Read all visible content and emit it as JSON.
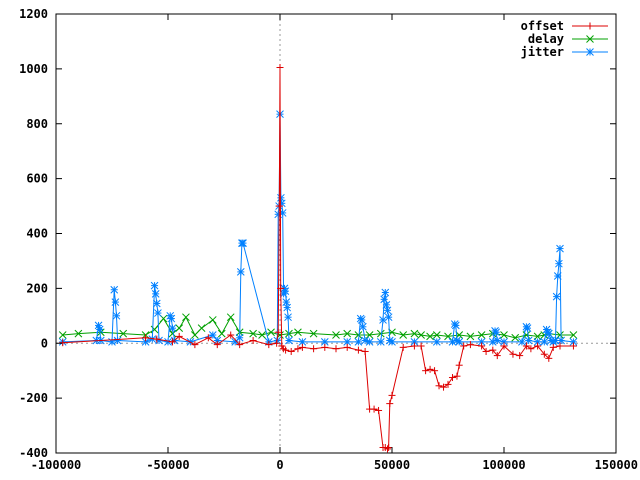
{
  "chart_data": {
    "type": "line",
    "title": "",
    "xlabel": "",
    "ylabel": "",
    "xlim": [
      -100000,
      150000
    ],
    "ylim": [
      -400,
      1200
    ],
    "x_ticks": [
      -100000,
      -50000,
      0,
      50000,
      100000,
      150000
    ],
    "y_ticks": [
      -400,
      -200,
      0,
      200,
      400,
      600,
      800,
      1000,
      1200
    ],
    "x_tick_labels": [
      "-100000",
      "-50000",
      "0",
      "50000",
      "100000",
      "150000"
    ],
    "y_tick_labels": [
      "-400",
      "-200",
      "0",
      "200",
      "400",
      "600",
      "800",
      "1000",
      "1200"
    ],
    "grid": false,
    "zero_axes": "dotted",
    "legend_position": "top-right",
    "series": [
      {
        "name": "offset",
        "color": "#dd0000",
        "marker": "plus",
        "x": [
          -97000,
          -60000,
          -55000,
          -48000,
          -45000,
          -38000,
          -32000,
          -28000,
          -22000,
          -18000,
          -12000,
          -5000,
          -1500,
          -800,
          -300,
          0,
          300,
          800,
          1500,
          2500,
          5000,
          8000,
          10000,
          15000,
          20000,
          25000,
          30000,
          35000,
          38000,
          40000,
          42000,
          44000,
          46000,
          47000,
          48000,
          48500,
          49000,
          50000,
          55000,
          60000,
          63000,
          65000,
          67000,
          69000,
          71000,
          73000,
          75000,
          77000,
          79000,
          80000,
          82000,
          85000,
          90000,
          92000,
          95000,
          97000,
          100000,
          104000,
          107000,
          110000,
          112000,
          115000,
          118000,
          120000,
          122000,
          125000,
          131000
        ],
        "y": [
          2,
          20,
          15,
          5,
          25,
          -5,
          20,
          -5,
          30,
          -5,
          10,
          -5,
          0,
          40,
          500,
          1005,
          200,
          -10,
          -20,
          -25,
          -30,
          -20,
          -15,
          -20,
          -15,
          -20,
          -15,
          -25,
          -30,
          -240,
          -240,
          -245,
          -380,
          -380,
          -385,
          -380,
          -220,
          -190,
          -15,
          -10,
          -10,
          -100,
          -95,
          -100,
          -155,
          -160,
          -150,
          -125,
          -120,
          -80,
          -10,
          -5,
          -10,
          -30,
          -25,
          -45,
          -10,
          -40,
          -45,
          -10,
          -20,
          -10,
          -40,
          -55,
          -15,
          -10,
          -10
        ]
      },
      {
        "name": "delay",
        "color": "#00a000",
        "marker": "x",
        "x": [
          -97000,
          -90000,
          -80000,
          -70000,
          -60000,
          -56000,
          -52000,
          -48000,
          -45000,
          -42000,
          -38000,
          -35000,
          -30000,
          -26000,
          -22000,
          -18000,
          -12000,
          -8000,
          -4000,
          0,
          4000,
          8000,
          15000,
          25000,
          30000,
          35000,
          40000,
          45000,
          50000,
          55000,
          60000,
          63000,
          67000,
          70000,
          75000,
          80000,
          85000,
          90000,
          95000,
          100000,
          105000,
          110000,
          115000,
          118000,
          120000,
          125000,
          131000
        ],
        "y": [
          30,
          35,
          40,
          35,
          30,
          50,
          90,
          35,
          55,
          95,
          30,
          55,
          85,
          35,
          95,
          40,
          35,
          30,
          40,
          30,
          35,
          40,
          35,
          30,
          35,
          30,
          30,
          35,
          40,
          30,
          35,
          30,
          25,
          30,
          25,
          30,
          25,
          30,
          35,
          30,
          20,
          30,
          25,
          30,
          35,
          30,
          30
        ]
      },
      {
        "name": "jitter",
        "color": "#0080ff",
        "marker": "star",
        "x": [
          -97000,
          -82000,
          -81000,
          -80500,
          -80000,
          -75000,
          -74000,
          -73500,
          -73000,
          -72500,
          -60000,
          -57000,
          -56000,
          -55500,
          -55000,
          -54500,
          -54000,
          -50000,
          -49000,
          -48500,
          -48000,
          -47000,
          -40000,
          -30000,
          -28000,
          -20000,
          -18000,
          -17500,
          -17000,
          -16500,
          -5000,
          -1200,
          -800,
          -400,
          0,
          400,
          800,
          1200,
          1600,
          2000,
          2400,
          2800,
          3200,
          3600,
          4000,
          10000,
          20000,
          30000,
          35000,
          36000,
          36500,
          37000,
          38000,
          40000,
          45000,
          46000,
          46500,
          47000,
          47500,
          48000,
          48500,
          49000,
          50000,
          60000,
          70000,
          77000,
          78000,
          78500,
          79000,
          80000,
          90000,
          95000,
          96000,
          96500,
          97000,
          100000,
          108000,
          110000,
          110500,
          111000,
          115000,
          118000,
          119000,
          119500,
          120000,
          121000,
          122000,
          123000,
          123500,
          124000,
          124500,
          125000,
          125500,
          131000
        ],
        "y": [
          5,
          10,
          65,
          50,
          10,
          5,
          195,
          150,
          100,
          10,
          5,
          15,
          210,
          180,
          145,
          110,
          10,
          5,
          100,
          90,
          55,
          10,
          5,
          30,
          10,
          5,
          20,
          260,
          365,
          365,
          5,
          10,
          470,
          500,
          835,
          530,
          510,
          475,
          180,
          200,
          190,
          150,
          130,
          95,
          10,
          5,
          5,
          5,
          5,
          90,
          85,
          60,
          10,
          5,
          5,
          85,
          160,
          185,
          140,
          120,
          95,
          10,
          5,
          5,
          5,
          5,
          70,
          65,
          10,
          5,
          5,
          5,
          45,
          40,
          10,
          5,
          5,
          60,
          55,
          10,
          5,
          5,
          50,
          40,
          35,
          10,
          5,
          10,
          170,
          245,
          290,
          345,
          10,
          5
        ]
      }
    ]
  }
}
